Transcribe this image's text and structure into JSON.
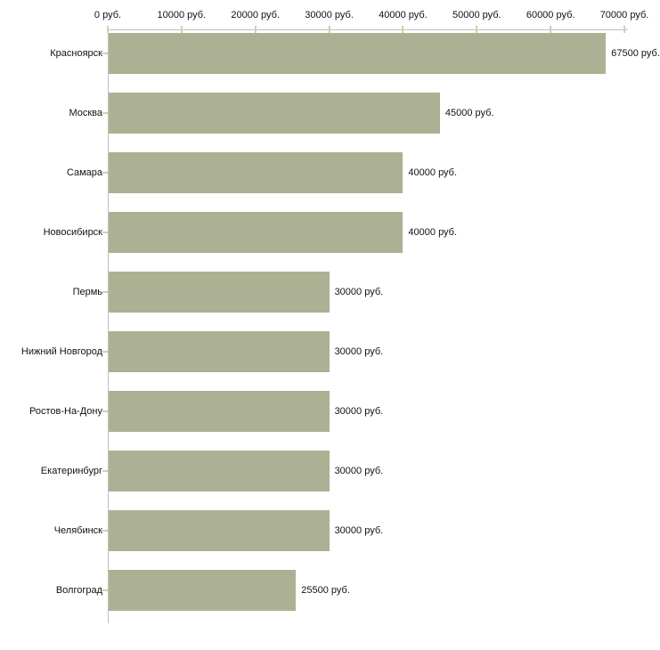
{
  "chart_data": {
    "type": "bar",
    "orientation": "horizontal",
    "title": "",
    "categories": [
      "Красноярск",
      "Москва",
      "Самара",
      "Новосибирск",
      "Пермь",
      "Нижний Новгород",
      "Ростов-На-Дону",
      "Екатеринбург",
      "Челябинск",
      "Волгоград"
    ],
    "values": [
      67500,
      45000,
      40000,
      40000,
      30000,
      30000,
      30000,
      30000,
      30000,
      25500
    ],
    "value_labels": [
      "67500 руб.",
      "45000 руб.",
      "40000 руб.",
      "40000 руб.",
      "30000 руб.",
      "30000 руб.",
      "30000 руб.",
      "30000 руб.",
      "30000 руб.",
      "25500 руб."
    ],
    "x_axis": {
      "position": "top",
      "range": [
        0,
        70000
      ],
      "tick_interval": 10000,
      "ticks": [
        {
          "value": 0,
          "label": "0 руб."
        },
        {
          "value": 10000,
          "label": "10000 руб."
        },
        {
          "value": 20000,
          "label": "20000 руб."
        },
        {
          "value": 30000,
          "label": "30000 руб."
        },
        {
          "value": 40000,
          "label": "40000 руб."
        },
        {
          "value": 50000,
          "label": "50000 руб."
        },
        {
          "value": 60000,
          "label": "60000 руб."
        },
        {
          "value": 70000,
          "label": "70000 руб."
        }
      ]
    },
    "grid": false,
    "legend": false,
    "colors": {
      "bar_fill": "#acb194",
      "axis_line": "#c0c0c0",
      "tick_mark": "#ced2a8",
      "text": "#111111",
      "background": "#ffffff"
    }
  }
}
